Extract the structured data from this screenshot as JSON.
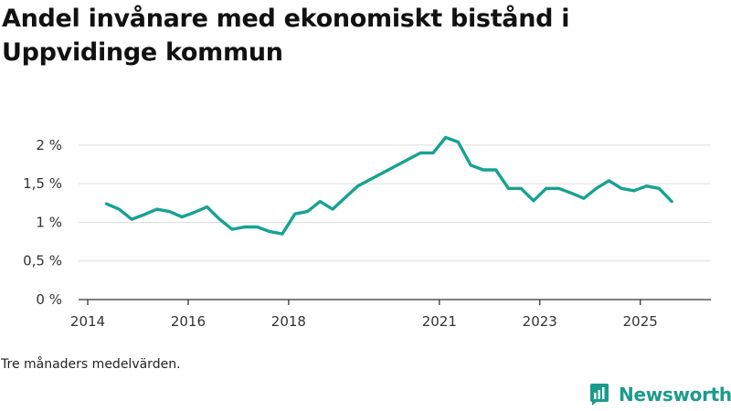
{
  "title": "Andel invånare med ekonomiskt bistånd i Uppvidinge kommun",
  "note": "Tre månaders medelvärden.",
  "brand": {
    "name": "Newsworthy",
    "icon": "newsworthy-logo-icon",
    "color": "#1a9b8c"
  },
  "colors": {
    "line": "#17a292",
    "grid": "#dddddd",
    "axis": "#333333"
  },
  "chart_data": {
    "type": "line",
    "title": "Andel invånare med ekonomiskt bistånd i Uppvidinge kommun",
    "xlabel": "",
    "ylabel": "",
    "ylim": [
      0,
      2.2
    ],
    "xlim": [
      2014,
      2026.2
    ],
    "grid": true,
    "y_ticks": [
      {
        "value": 0,
        "label": "0 %"
      },
      {
        "value": 0.5,
        "label": "0,5 %"
      },
      {
        "value": 1,
        "label": "1 %"
      },
      {
        "value": 1.5,
        "label": "1,5 %"
      },
      {
        "value": 2,
        "label": "2 %"
      }
    ],
    "x_ticks": [
      {
        "value": 2014,
        "label": "2014"
      },
      {
        "value": 2016,
        "label": "2016"
      },
      {
        "value": 2018,
        "label": "2018"
      },
      {
        "value": 2021,
        "label": "2021"
      },
      {
        "value": 2023,
        "label": "2023"
      },
      {
        "value": 2025,
        "label": "2025"
      }
    ],
    "series": [
      {
        "name": "Andel invånare med ekonomiskt bistånd",
        "x": [
          2014.375,
          2014.625,
          2014.875,
          2015.125,
          2015.375,
          2015.625,
          2015.875,
          2016.125,
          2016.375,
          2016.625,
          2016.875,
          2017.125,
          2017.375,
          2017.625,
          2017.875,
          2018.125,
          2018.375,
          2018.625,
          2018.875,
          2019.375,
          2020.625,
          2020.875,
          2021.125,
          2021.375,
          2021.625,
          2021.875,
          2022.125,
          2022.375,
          2022.625,
          2022.875,
          2023.125,
          2023.375,
          2023.625,
          2023.875,
          2024.125,
          2024.375,
          2024.625,
          2024.875,
          2025.125,
          2025.375,
          2025.625
        ],
        "values": [
          1.24,
          1.17,
          1.04,
          1.1,
          1.17,
          1.14,
          1.07,
          1.13,
          1.2,
          1.04,
          0.91,
          0.94,
          0.94,
          0.88,
          0.85,
          1.11,
          1.14,
          1.27,
          1.17,
          1.47,
          1.9,
          1.9,
          2.1,
          2.04,
          1.74,
          1.68,
          1.68,
          1.44,
          1.44,
          1.28,
          1.44,
          1.44,
          1.38,
          1.31,
          1.44,
          1.54,
          1.44,
          1.41,
          1.47,
          1.44,
          1.27
        ]
      }
    ]
  }
}
